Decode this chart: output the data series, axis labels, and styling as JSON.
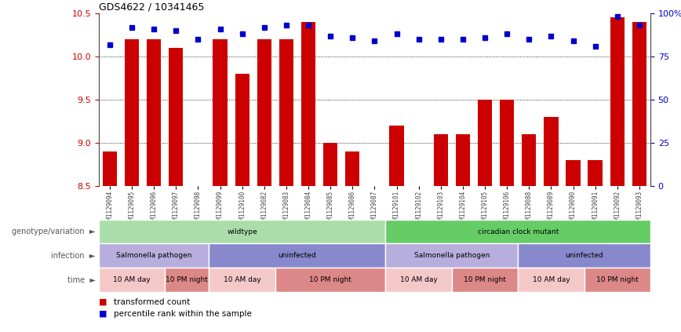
{
  "title": "GDS4622 / 10341465",
  "samples": [
    "GSM1129094",
    "GSM1129095",
    "GSM1129096",
    "GSM1129097",
    "GSM1129098",
    "GSM1129099",
    "GSM1129100",
    "GSM1129082",
    "GSM1129083",
    "GSM1129084",
    "GSM1129085",
    "GSM1129086",
    "GSM1129087",
    "GSM1129101",
    "GSM1129102",
    "GSM1129103",
    "GSM1129104",
    "GSM1129105",
    "GSM1129106",
    "GSM1129088",
    "GSM1129089",
    "GSM1129090",
    "GSM1129091",
    "GSM1129092",
    "GSM1129093"
  ],
  "transformed_count": [
    8.9,
    10.2,
    10.2,
    10.1,
    8.5,
    10.2,
    9.8,
    10.2,
    10.2,
    10.4,
    9.0,
    8.9,
    8.5,
    9.2,
    8.5,
    9.1,
    9.1,
    9.5,
    9.5,
    9.1,
    9.3,
    8.8,
    8.8,
    10.45,
    10.4
  ],
  "percentile": [
    82,
    92,
    91,
    90,
    85,
    91,
    88,
    92,
    93,
    93,
    87,
    86,
    84,
    88,
    85,
    85,
    85,
    86,
    88,
    85,
    87,
    84,
    81,
    98,
    93
  ],
  "ylim_left": [
    8.5,
    10.5
  ],
  "ylim_right": [
    0,
    100
  ],
  "yticks_left": [
    8.5,
    9.0,
    9.5,
    10.0,
    10.5
  ],
  "yticks_right": [
    0,
    25,
    50,
    75,
    100
  ],
  "ytick_labels_right": [
    "0",
    "25",
    "50",
    "75",
    "100%"
  ],
  "bar_color": "#cc0000",
  "dot_color": "#0000cc",
  "annotation_rows": [
    {
      "label": "genotype/variation",
      "segments": [
        {
          "text": "wildtype",
          "start": 0,
          "end": 13,
          "color": "#aaddaa"
        },
        {
          "text": "circadian clock mutant",
          "start": 13,
          "end": 25,
          "color": "#66cc66"
        }
      ]
    },
    {
      "label": "infection",
      "segments": [
        {
          "text": "Salmonella pathogen",
          "start": 0,
          "end": 5,
          "color": "#b8aedd"
        },
        {
          "text": "uninfected",
          "start": 5,
          "end": 13,
          "color": "#8888cc"
        },
        {
          "text": "Salmonella pathogen",
          "start": 13,
          "end": 19,
          "color": "#b8aedd"
        },
        {
          "text": "uninfected",
          "start": 19,
          "end": 25,
          "color": "#8888cc"
        }
      ]
    },
    {
      "label": "time",
      "segments": [
        {
          "text": "10 AM day",
          "start": 0,
          "end": 3,
          "color": "#f5c8c8"
        },
        {
          "text": "10 PM night",
          "start": 3,
          "end": 5,
          "color": "#dd8888"
        },
        {
          "text": "10 AM day",
          "start": 5,
          "end": 8,
          "color": "#f5c8c8"
        },
        {
          "text": "10 PM night",
          "start": 8,
          "end": 13,
          "color": "#dd8888"
        },
        {
          "text": "10 AM day",
          "start": 13,
          "end": 16,
          "color": "#f5c8c8"
        },
        {
          "text": "10 PM night",
          "start": 16,
          "end": 19,
          "color": "#dd8888"
        },
        {
          "text": "10 AM day",
          "start": 19,
          "end": 22,
          "color": "#f5c8c8"
        },
        {
          "text": "10 PM night",
          "start": 22,
          "end": 25,
          "color": "#dd8888"
        }
      ]
    }
  ],
  "legend_items": [
    {
      "label": "transformed count",
      "color": "#cc0000"
    },
    {
      "label": "percentile rank within the sample",
      "color": "#0000cc"
    }
  ]
}
